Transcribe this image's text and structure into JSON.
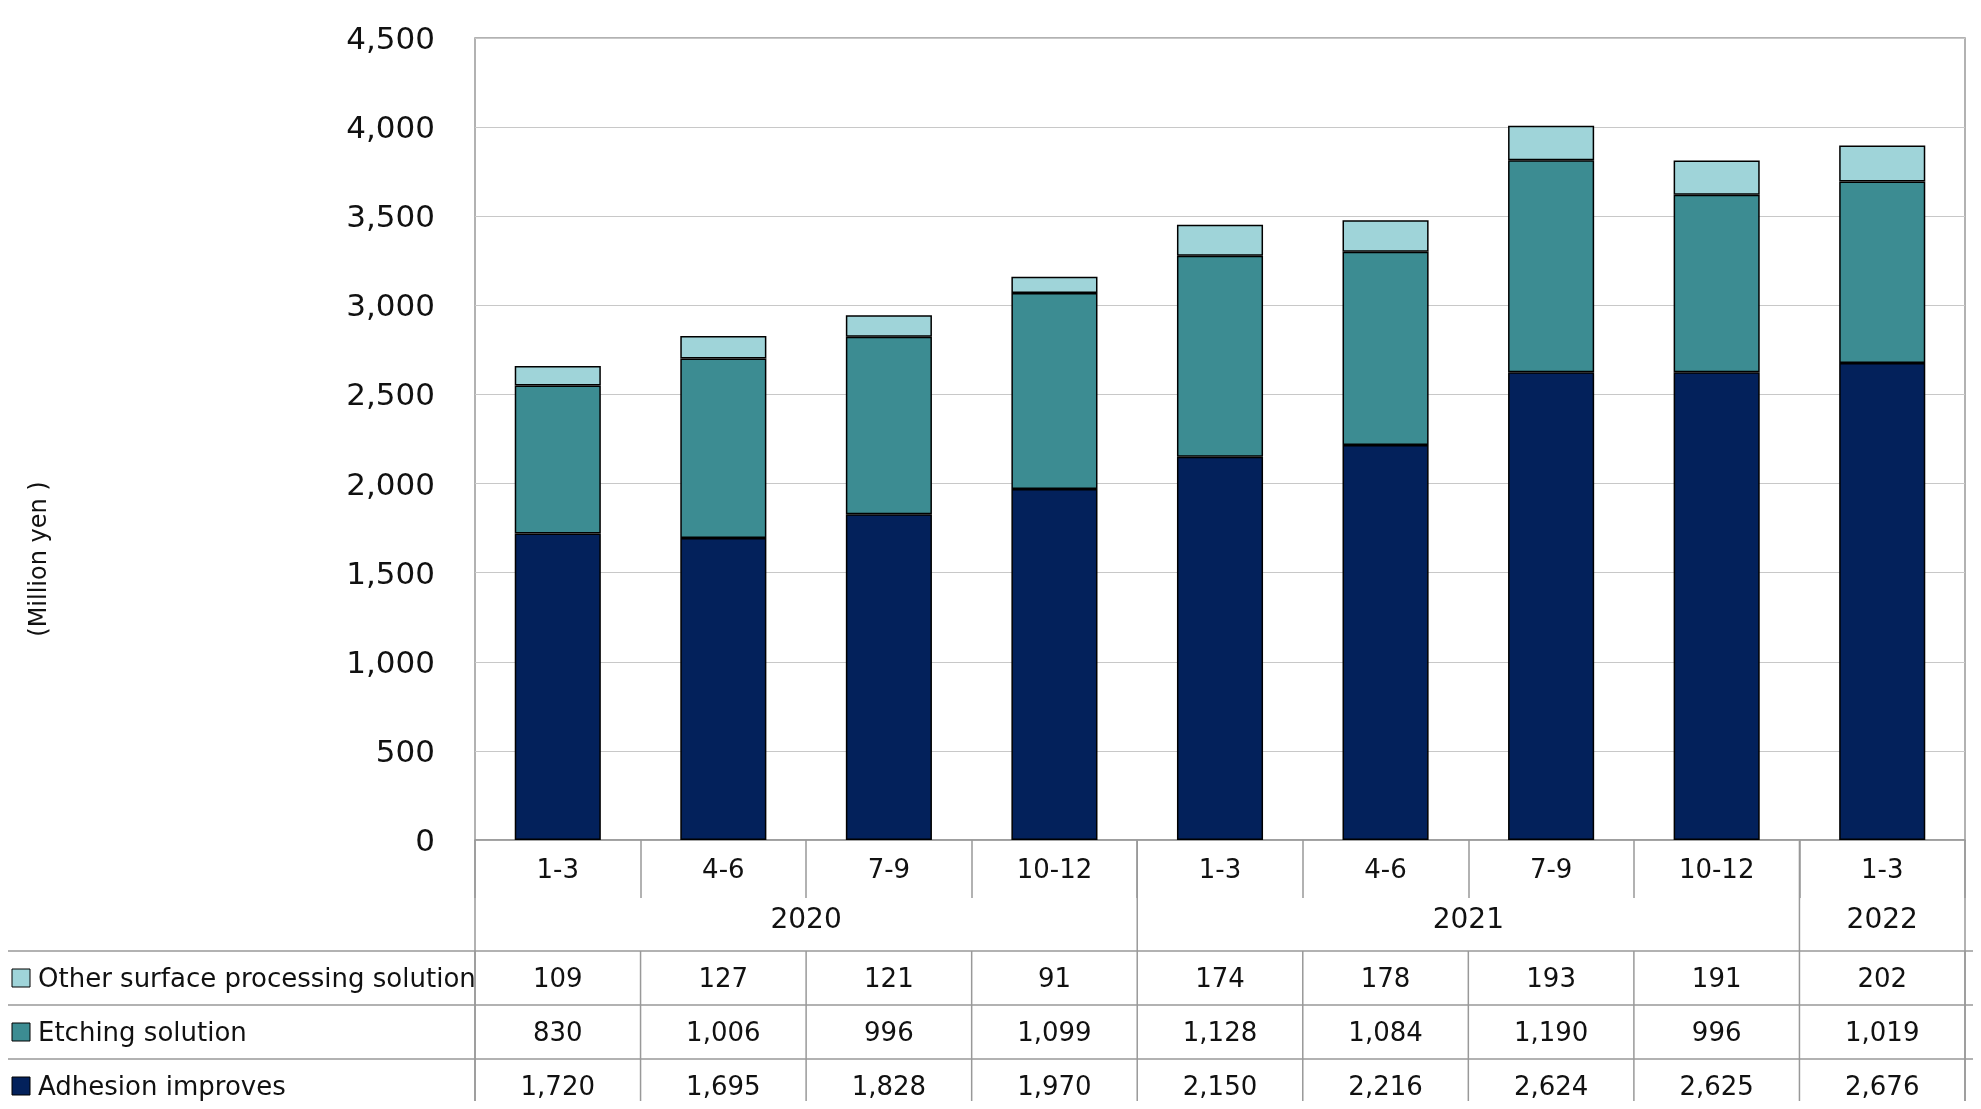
{
  "chart_data": {
    "type": "bar",
    "stacked": true,
    "categories": [
      "1-3",
      "4-6",
      "7-9",
      "10-12",
      "1-3",
      "4-6",
      "7-9",
      "10-12",
      "1-3"
    ],
    "series": [
      {
        "name": "Adhesion improves",
        "color": "#03215b",
        "values": [
          1720,
          1695,
          1828,
          1970,
          2150,
          2216,
          2624,
          2625,
          2676
        ],
        "value_labels": [
          "1,720",
          "1,695",
          "1,828",
          "1,970",
          "2,150",
          "2,216",
          "2,624",
          "2,625",
          "2,676"
        ]
      },
      {
        "name": "Etching solution",
        "color": "#3c8c92",
        "values": [
          830,
          1006,
          996,
          1099,
          1128,
          1084,
          1190,
          996,
          1019
        ],
        "value_labels": [
          "830",
          "1,006",
          "996",
          "1,099",
          "1,128",
          "1,084",
          "1,190",
          "996",
          "1,019"
        ]
      },
      {
        "name": "Other surface processing solution",
        "color": "#9fd4d9",
        "values": [
          109,
          127,
          121,
          91,
          174,
          178,
          193,
          191,
          202
        ],
        "value_labels": [
          "109",
          "127",
          "121",
          "91",
          "174",
          "178",
          "193",
          "191",
          "202"
        ]
      }
    ],
    "annotations": [
      "(Million yen )",
      "2020",
      "2021",
      "2022"
    ],
    "ylim": [
      0,
      4500
    ],
    "yticks": [
      0,
      500,
      {
        "value": 1000,
        "label": "1,000"
      },
      {
        "value": 1500,
        "label": "1,500"
      },
      {
        "value": 2000,
        "label": "2,000"
      },
      {
        "value": 2500,
        "label": "2,500"
      },
      {
        "value": 3000,
        "label": "3,000"
      },
      {
        "value": 3500,
        "label": "3,500"
      },
      {
        "value": 4000,
        "label": "4,000"
      },
      {
        "value": 4500,
        "label": "4,500"
      }
    ],
    "grid": "y",
    "legend": "bottom"
  }
}
